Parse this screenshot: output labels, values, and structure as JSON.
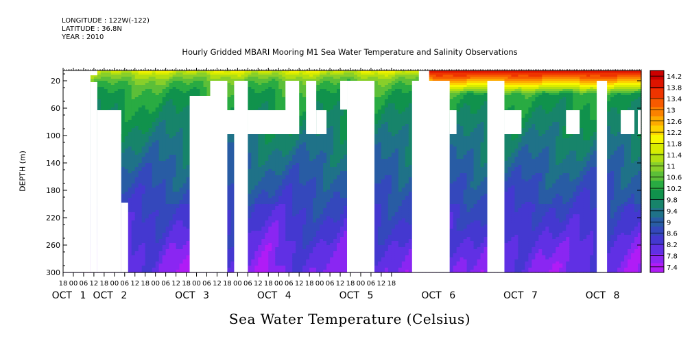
{
  "header": {
    "longitude": "LONGITUDE : 122W(-122)",
    "latitude": "LATITUDE : 36.8N",
    "year": "YEAR : 2010"
  },
  "footer": {
    "label": "Sea Water Temperature (Celsius)"
  },
  "chart_data": {
    "type": "heatmap",
    "title": "Hourly Gridded MBARI Mooring M1 Sea Water Temperature and Salinity Observations",
    "xlabel": "",
    "ylabel": "DEPTH (m)",
    "x_tick_hours": [
      "18",
      "00",
      "06",
      "12",
      "18",
      "00",
      "06",
      "12",
      "18",
      "00",
      "06",
      "12",
      "18",
      "00",
      "06",
      "12",
      "18",
      "00",
      "06",
      "12",
      "18",
      "00",
      "06",
      "12",
      "18",
      "00",
      "06",
      "12",
      "18",
      "00",
      "06",
      "12",
      "18"
    ],
    "x_day_labels": [
      {
        "month": "OCT",
        "day": "1",
        "at_hour": 6
      },
      {
        "month": "OCT",
        "day": "2",
        "at_hour": 30
      },
      {
        "month": "OCT",
        "day": "3",
        "at_hour": 78
      },
      {
        "month": "OCT",
        "day": "4",
        "at_hour": 126
      },
      {
        "month": "OCT",
        "day": "5",
        "at_hour": 174
      },
      {
        "month": "OCT",
        "day": "6",
        "at_hour": 222
      },
      {
        "month": "OCT",
        "day": "7",
        "at_hour": 270
      },
      {
        "month": "OCT",
        "day": "8",
        "at_hour": 318
      }
    ],
    "x_range_hours": [
      0,
      338
    ],
    "x_origin": "OCT 1 18:00, 2010 (hours since)",
    "y_ticks": [
      20,
      60,
      100,
      140,
      180,
      220,
      260,
      300
    ],
    "ylim": [
      300,
      5
    ],
    "y_inverted": true,
    "colorbar": {
      "labels": [
        "14.2",
        "13.8",
        "13.4",
        "13",
        "12.6",
        "12.2",
        "11.8",
        "11.4",
        "11",
        "10.6",
        "10.2",
        "9.8",
        "9.4",
        "9",
        "8.6",
        "8.2",
        "7.8",
        "7.4"
      ],
      "range": [
        7.2,
        14.4
      ],
      "colors": [
        "#cc0000",
        "#dd1400",
        "#ee3400",
        "#f75a00",
        "#fb8200",
        "#fdab00",
        "#fdd200",
        "#f7f700",
        "#d8ec00",
        "#b2df12",
        "#88cf2a",
        "#5cbf38",
        "#29ab42",
        "#10924c",
        "#17846a",
        "#1f7288",
        "#285ca4",
        "#3448bc",
        "#4438d0",
        "#6030e4",
        "#8a26f2",
        "#b01cf6"
      ]
    },
    "temperature_profile": {
      "depth": [
        5,
        10,
        20,
        35,
        50,
        70,
        100,
        140,
        180,
        220,
        260,
        300
      ],
      "temp": [
        11.8,
        11.3,
        10.7,
        10.3,
        10.1,
        9.9,
        9.6,
        9.2,
        8.8,
        8.5,
        8.15,
        7.9
      ]
    },
    "warm_surface_after_hour": 210,
    "warm_surface_temp": 14.0,
    "no_data_regions": [
      {
        "x": [
          0,
          16
        ],
        "y": [
          5,
          300
        ]
      },
      {
        "x": [
          16,
          20
        ],
        "y": [
          5,
          12
        ]
      },
      {
        "x": [
          16,
          20
        ],
        "y": [
          22,
          300
        ]
      },
      {
        "x": [
          20,
          34
        ],
        "y": [
          63,
          300
        ]
      },
      {
        "x": [
          26,
          34
        ],
        "y": [
          63,
          98
        ]
      },
      {
        "x": [
          34,
          38
        ],
        "y": [
          198,
          300
        ]
      },
      {
        "x": [
          74,
          88
        ],
        "y": [
          42,
          300
        ]
      },
      {
        "x": [
          86,
          96
        ],
        "y": [
          20,
          300
        ]
      },
      {
        "x": [
          86,
          96
        ],
        "y": [
          63,
          98
        ]
      },
      {
        "x": [
          100,
          108
        ],
        "y": [
          20,
          300
        ]
      },
      {
        "x": [
          78,
          108
        ],
        "y": [
          63,
          98
        ]
      },
      {
        "x": [
          108,
          138
        ],
        "y": [
          63,
          98
        ]
      },
      {
        "x": [
          130,
          138
        ],
        "y": [
          20,
          98
        ]
      },
      {
        "x": [
          142,
          148
        ],
        "y": [
          20,
          98
        ]
      },
      {
        "x": [
          148,
          154
        ],
        "y": [
          63,
          98
        ]
      },
      {
        "x": [
          162,
          166
        ],
        "y": [
          20,
          62
        ]
      },
      {
        "x": [
          166,
          182
        ],
        "y": [
          20,
          300
        ]
      },
      {
        "x": [
          178,
          182
        ],
        "y": [
          20,
          300
        ]
      },
      {
        "x": [
          208,
          214
        ],
        "y": [
          5,
          20
        ]
      },
      {
        "x": [
          204,
          226
        ],
        "y": [
          20,
          300
        ]
      },
      {
        "x": [
          226,
          230
        ],
        "y": [
          63,
          98
        ]
      },
      {
        "x": [
          248,
          258
        ],
        "y": [
          20,
          300
        ]
      },
      {
        "x": [
          258,
          268
        ],
        "y": [
          63,
          98
        ]
      },
      {
        "x": [
          294,
          302
        ],
        "y": [
          63,
          98
        ]
      },
      {
        "x": [
          312,
          318
        ],
        "y": [
          20,
          300
        ]
      },
      {
        "x": [
          326,
          334
        ],
        "y": [
          63,
          98
        ]
      },
      {
        "x": [
          336,
          338
        ],
        "y": [
          63,
          98
        ]
      }
    ]
  }
}
